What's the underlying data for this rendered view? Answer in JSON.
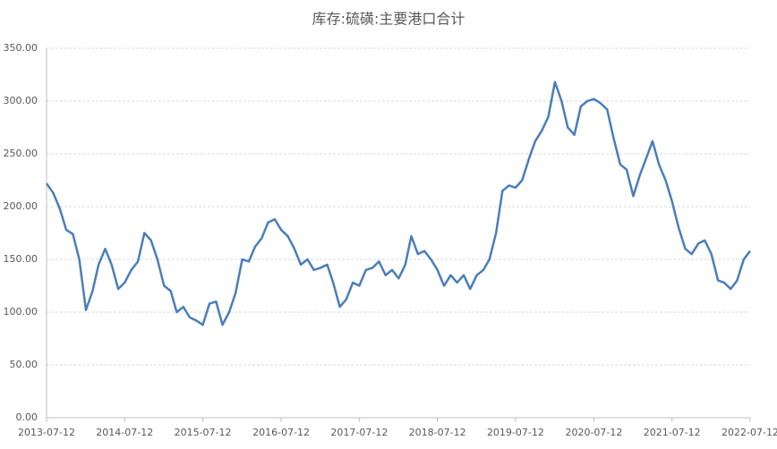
{
  "chart_data": {
    "type": "line",
    "title": "库存:硫磺:主要港口合计",
    "x": [
      "2013-07-12",
      "2013-08-12",
      "2013-09-12",
      "2013-10-12",
      "2013-11-12",
      "2013-12-12",
      "2014-01-12",
      "2014-02-12",
      "2014-03-12",
      "2014-04-12",
      "2014-05-12",
      "2014-06-12",
      "2014-07-12",
      "2014-08-12",
      "2014-09-12",
      "2014-10-12",
      "2014-11-12",
      "2014-12-12",
      "2015-01-12",
      "2015-02-12",
      "2015-03-12",
      "2015-04-12",
      "2015-05-12",
      "2015-06-12",
      "2015-07-12",
      "2015-08-12",
      "2015-09-12",
      "2015-10-12",
      "2015-11-12",
      "2015-12-12",
      "2016-01-12",
      "2016-02-12",
      "2016-03-12",
      "2016-04-12",
      "2016-05-12",
      "2016-06-12",
      "2016-07-12",
      "2016-08-12",
      "2016-09-12",
      "2016-10-12",
      "2016-11-12",
      "2016-12-12",
      "2017-01-12",
      "2017-02-12",
      "2017-03-12",
      "2017-04-12",
      "2017-05-12",
      "2017-06-12",
      "2017-07-12",
      "2017-08-12",
      "2017-09-12",
      "2017-10-12",
      "2017-11-12",
      "2017-12-12",
      "2018-01-12",
      "2018-02-12",
      "2018-03-12",
      "2018-04-12",
      "2018-05-12",
      "2018-06-12",
      "2018-07-12",
      "2018-08-12",
      "2018-09-12",
      "2018-10-12",
      "2018-11-12",
      "2018-12-12",
      "2019-01-12",
      "2019-02-12",
      "2019-03-12",
      "2019-04-12",
      "2019-05-12",
      "2019-06-12",
      "2019-07-12",
      "2019-08-12",
      "2019-09-12",
      "2019-10-12",
      "2019-11-12",
      "2019-12-12",
      "2020-01-12",
      "2020-02-12",
      "2020-03-12",
      "2020-04-12",
      "2020-05-12",
      "2020-06-12",
      "2020-07-12",
      "2020-08-12",
      "2020-09-12",
      "2020-10-12",
      "2020-11-12",
      "2020-12-12",
      "2021-01-12",
      "2021-02-12",
      "2021-03-12",
      "2021-04-12",
      "2021-05-12",
      "2021-06-12",
      "2021-07-12",
      "2021-08-12",
      "2021-09-12",
      "2021-10-12",
      "2021-11-12",
      "2021-12-12",
      "2022-01-12",
      "2022-02-12",
      "2022-03-12",
      "2022-04-12",
      "2022-05-12",
      "2022-06-12",
      "2022-07-12"
    ],
    "values": [
      222,
      213,
      198,
      178,
      174,
      150,
      102,
      120,
      145,
      160,
      145,
      122,
      128,
      140,
      148,
      175,
      168,
      150,
      125,
      120,
      100,
      105,
      95,
      92,
      88,
      108,
      110,
      88,
      100,
      118,
      150,
      148,
      162,
      170,
      185,
      188,
      178,
      172,
      160,
      145,
      150,
      140,
      142,
      145,
      128,
      105,
      112,
      128,
      125,
      140,
      142,
      148,
      135,
      140,
      132,
      145,
      172,
      155,
      158,
      150,
      140,
      125,
      135,
      128,
      135,
      122,
      135,
      140,
      150,
      175,
      215,
      220,
      218,
      225,
      245,
      262,
      272,
      285,
      318,
      300,
      275,
      268,
      295,
      300,
      302,
      298,
      292,
      265,
      240,
      235,
      210,
      230,
      245,
      262,
      240,
      225,
      205,
      180,
      160,
      155,
      165,
      168,
      155,
      130,
      128,
      122,
      130,
      150,
      158
    ],
    "color": "#4a7ebb",
    "xlim": [
      "2013-07-12",
      "2022-07-12"
    ],
    "xticks": [
      "2013-07-12",
      "2014-07-12",
      "2015-07-12",
      "2016-07-12",
      "2017-07-12",
      "2018-07-12",
      "2019-07-12",
      "2020-07-12",
      "2021-07-12",
      "2022-07-12"
    ],
    "ylim": [
      0,
      350
    ],
    "yticks": [
      {
        "value": 0,
        "label": "0.00"
      },
      {
        "value": 50,
        "label": "50.00"
      },
      {
        "value": 100,
        "label": "100.00"
      },
      {
        "value": 150,
        "label": "150.00"
      },
      {
        "value": 200,
        "label": "200.00"
      },
      {
        "value": 250,
        "label": "250.00"
      },
      {
        "value": 300,
        "label": "300.00"
      },
      {
        "value": 350,
        "label": "350.00"
      }
    ],
    "grid": true
  }
}
